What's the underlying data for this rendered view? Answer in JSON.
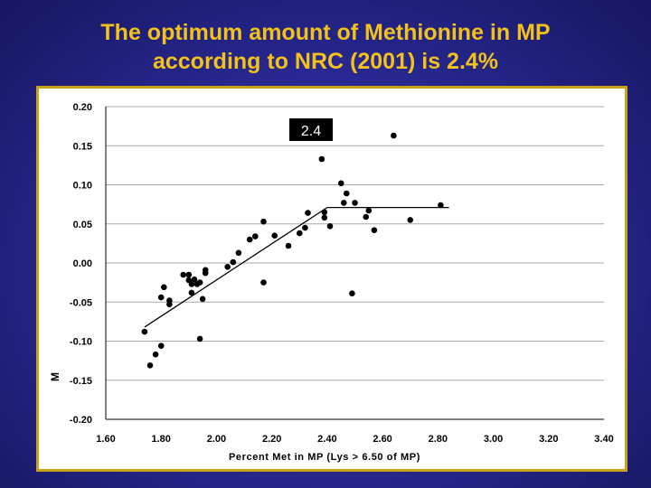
{
  "slide": {
    "title_line1": "The optimum amount of Methionine in MP",
    "title_line2": "according to NRC (2001) is 2.4%"
  },
  "colors": {
    "background": "#2a2a96",
    "title": "#f2c21b",
    "frame_border": "#c9a21a",
    "points": "#000000"
  },
  "chart_data": {
    "type": "scatter",
    "title": "",
    "xlabel": "Percent Met in MP (Lys > 6.50 of MP)",
    "ylabel": "M",
    "xlim": [
      1.6,
      3.4
    ],
    "ylim": [
      -0.2,
      0.2
    ],
    "xticks": [
      "1.60",
      "1.80",
      "2.00",
      "2.20",
      "2.40",
      "2.60",
      "2.80",
      "3.00",
      "3.20",
      "3.40"
    ],
    "yticks": [
      "0.20",
      "0.15",
      "0.10",
      "0.05",
      "0.00",
      "-0.05",
      "-0.10",
      "-0.15",
      "-0.20"
    ],
    "grid": "horizontal",
    "annotation": "2.4",
    "breakpoint_line": [
      [
        1.74,
        -0.082
      ],
      [
        2.4,
        0.071
      ],
      [
        2.84,
        0.071
      ]
    ],
    "points": [
      [
        1.74,
        -0.088
      ],
      [
        1.76,
        -0.131
      ],
      [
        1.78,
        -0.117
      ],
      [
        1.8,
        -0.106
      ],
      [
        1.8,
        -0.044
      ],
      [
        1.81,
        -0.031
      ],
      [
        1.83,
        -0.048
      ],
      [
        1.83,
        -0.053
      ],
      [
        1.88,
        -0.015
      ],
      [
        1.9,
        -0.015
      ],
      [
        1.9,
        -0.022
      ],
      [
        1.91,
        -0.027
      ],
      [
        1.91,
        -0.038
      ],
      [
        1.92,
        -0.021
      ],
      [
        1.93,
        -0.027
      ],
      [
        1.94,
        -0.025
      ],
      [
        1.94,
        -0.097
      ],
      [
        1.95,
        -0.046
      ],
      [
        1.96,
        -0.009
      ],
      [
        1.96,
        -0.013
      ],
      [
        2.04,
        -0.005
      ],
      [
        2.06,
        0.001
      ],
      [
        2.08,
        0.013
      ],
      [
        2.12,
        0.03
      ],
      [
        2.14,
        0.034
      ],
      [
        2.17,
        0.053
      ],
      [
        2.17,
        -0.025
      ],
      [
        2.21,
        0.035
      ],
      [
        2.26,
        0.022
      ],
      [
        2.3,
        0.038
      ],
      [
        2.32,
        0.045
      ],
      [
        2.33,
        0.064
      ],
      [
        2.38,
        0.133
      ],
      [
        2.39,
        0.065
      ],
      [
        2.39,
        0.058
      ],
      [
        2.41,
        0.047
      ],
      [
        2.45,
        0.102
      ],
      [
        2.46,
        0.077
      ],
      [
        2.47,
        0.089
      ],
      [
        2.49,
        -0.039
      ],
      [
        2.5,
        0.077
      ],
      [
        2.54,
        0.059
      ],
      [
        2.55,
        0.067
      ],
      [
        2.57,
        0.042
      ],
      [
        2.64,
        0.163
      ],
      [
        2.7,
        0.055
      ],
      [
        2.81,
        0.074
      ]
    ]
  }
}
